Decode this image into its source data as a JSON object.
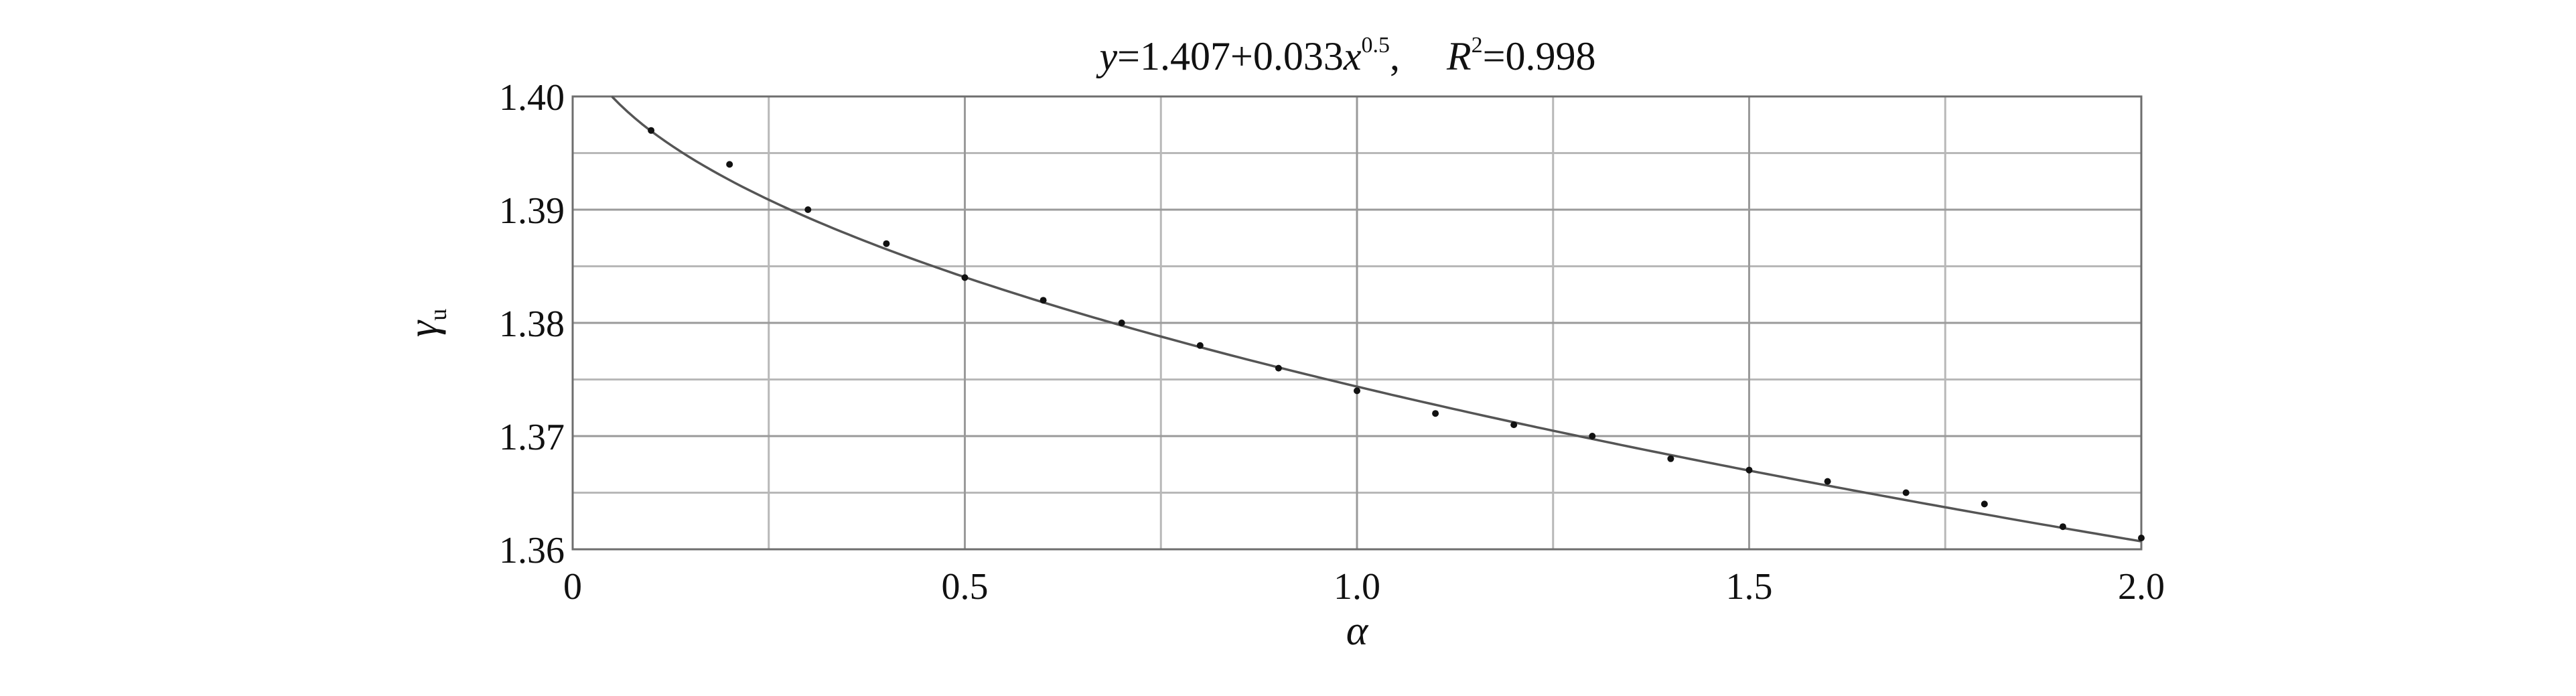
{
  "chart_data": {
    "type": "scatter",
    "title": {
      "y_var": "y",
      "eq_rest": "=1.407+0.033",
      "x_var": "x",
      "exponent": "0.5",
      "comma": ",",
      "r_var": "R",
      "r_sup": "2",
      "r_value": "=0.998"
    },
    "xlabel": "α",
    "ylabel": {
      "main": "γ",
      "sub": "u"
    },
    "xlim": [
      0,
      2.0
    ],
    "ylim": [
      1.36,
      1.4
    ],
    "x_ticks": [
      0,
      0.5,
      1.0,
      1.5,
      2.0
    ],
    "x_tick_labels": [
      "0",
      "0.5",
      "1.0",
      "1.5",
      "2.0"
    ],
    "x_minor_grid": [
      0.25,
      0.75,
      1.25,
      1.75
    ],
    "y_ticks": [
      1.36,
      1.37,
      1.38,
      1.39,
      1.4
    ],
    "y_tick_labels": [
      "1.36",
      "1.37",
      "1.38",
      "1.39",
      "1.40"
    ],
    "y_minor_grid": [
      1.365,
      1.375,
      1.385,
      1.395
    ],
    "grid": true,
    "series": [
      {
        "kind": "points",
        "x": [
          0.1,
          0.2,
          0.3,
          0.4,
          0.5,
          0.6,
          0.7,
          0.8,
          0.9,
          1.0,
          1.1,
          1.2,
          1.3,
          1.4,
          1.5,
          1.6,
          1.7,
          1.8,
          1.9,
          2.0
        ],
        "y": [
          1.397,
          1.394,
          1.39,
          1.387,
          1.384,
          1.382,
          1.38,
          1.378,
          1.376,
          1.374,
          1.372,
          1.371,
          1.37,
          1.368,
          1.367,
          1.366,
          1.365,
          1.364,
          1.362,
          1.361
        ]
      },
      {
        "kind": "fit",
        "x_start": 0.05,
        "x_end": 2.0,
        "y_start": 1.4,
        "y_end": 1.3607
      }
    ]
  }
}
